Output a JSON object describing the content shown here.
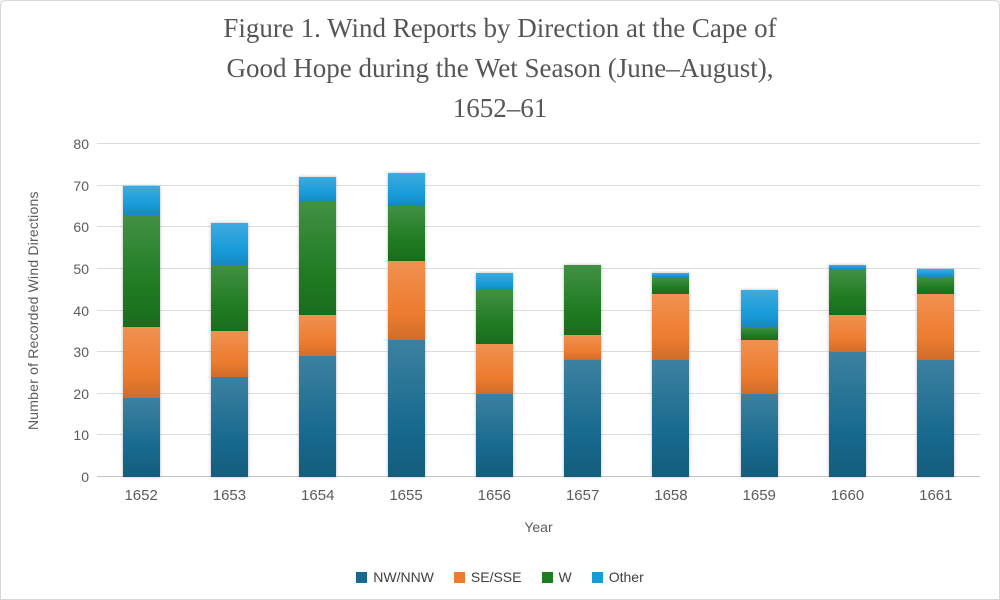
{
  "title_lines": [
    "Figure 1. Wind Reports by Direction at the Cape of",
    "Good Hope during the Wet Season (June–August),",
    "1652–61"
  ],
  "y_axis": {
    "label": "Number of Recorded Wind Directions",
    "ticks": [
      0,
      10,
      20,
      30,
      40,
      50,
      60,
      70,
      80
    ],
    "max": 80
  },
  "x_axis": {
    "label": "Year"
  },
  "legend": [
    {
      "name": "NW/NNW",
      "color": "#17698E"
    },
    {
      "name": "SE/SSE",
      "color": "#ED7C2F"
    },
    {
      "name": "W",
      "color": "#1E7B21"
    },
    {
      "name": "Other",
      "color": "#189BD9"
    }
  ],
  "colors": {
    "grid": "#dcdcdc",
    "baseline": "#c4c4c4",
    "axis_text": "#5c5c5c",
    "title_text": "#565656",
    "legend_text": "#3f3f3f"
  },
  "chart_data": {
    "type": "bar",
    "stacked": true,
    "title": "Figure 1. Wind Reports by Direction at the Cape of Good Hope during the Wet Season (June–August), 1652–61",
    "xlabel": "Year",
    "ylabel": "Number of Recorded Wind Directions",
    "ylim": [
      0,
      80
    ],
    "grid": true,
    "legend_position": "bottom",
    "categories": [
      "1652",
      "1653",
      "1654",
      "1655",
      "1656",
      "1657",
      "1658",
      "1659",
      "1660",
      "1661"
    ],
    "series": [
      {
        "name": "NW/NNW",
        "color": "#17698E",
        "values": [
          19,
          24,
          29,
          33,
          20,
          28,
          28,
          20,
          30,
          28
        ]
      },
      {
        "name": "SE/SSE",
        "color": "#ED7C2F",
        "values": [
          17,
          11,
          10,
          19,
          12,
          6,
          16,
          13,
          9,
          16
        ]
      },
      {
        "name": "W",
        "color": "#1E7B21",
        "values": [
          27,
          16,
          27,
          13,
          13,
          17,
          4,
          3,
          11,
          4
        ]
      },
      {
        "name": "Other",
        "color": "#189BD9",
        "values": [
          7,
          10,
          6,
          8,
          4,
          0,
          1,
          9,
          1,
          2
        ]
      }
    ],
    "stack_totals": [
      70,
      61,
      72,
      73,
      49,
      51,
      49,
      45,
      51,
      50
    ]
  }
}
